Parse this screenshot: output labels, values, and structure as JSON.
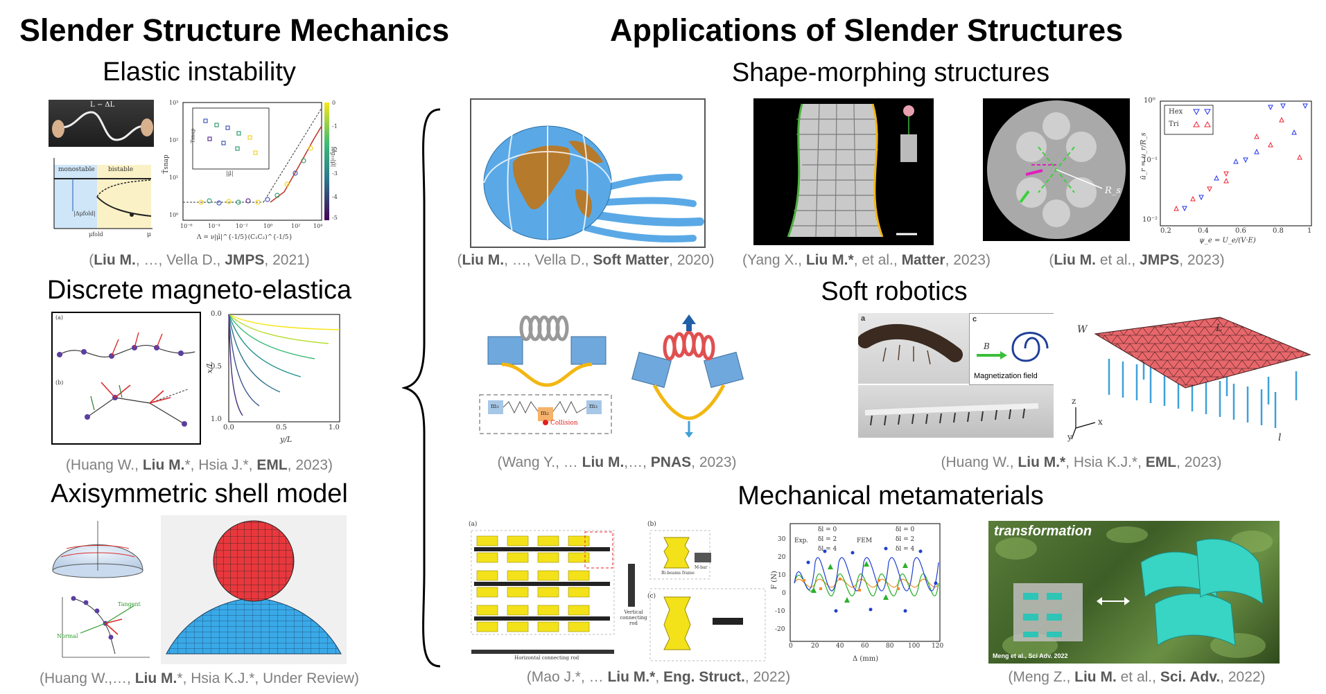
{
  "left_heading": "Slender Structure Mechanics",
  "right_heading": "Applications of Slender Structures",
  "left_sections": [
    {
      "title": "Elastic instability",
      "citation": {
        "pre": "(",
        "b1": "Liu M.",
        "mid1": ", …, Vella D., ",
        "b2": "JMPS",
        "post": ", 2021)"
      }
    },
    {
      "title": "Discrete magneto-elastica",
      "citation": {
        "pre": "(Huang W., ",
        "b1": "Liu M.",
        "mid1": "*, Hsia J.*, ",
        "b2": "EML",
        "post": ", 2023)"
      }
    },
    {
      "title": "Axisymmetric shell model",
      "citation": {
        "pre": "(Huang W.,…, ",
        "b1": "Liu M.",
        "mid1": "*, Hsia K.J.*, Under Review)",
        "b2": "",
        "post": ""
      }
    }
  ],
  "right_sections": {
    "shape_morphing": {
      "title": "Shape-morphing structures",
      "citations": [
        {
          "pre": "(",
          "b1": "Liu M.",
          "mid1": ", …, Vella D., ",
          "b2": "Soft Matter",
          "post": ", 2020)"
        },
        {
          "pre": "(Yang X., ",
          "b1": "Liu M.*",
          "mid1": ", et al., ",
          "b2": "Matter",
          "post": ", 2023)"
        },
        {
          "pre": "(",
          "b1": "Liu M.",
          "mid1": " et al., ",
          "b2": "JMPS",
          "post": ", 2023)"
        }
      ]
    },
    "soft_robotics": {
      "title": "Soft robotics",
      "citations": [
        {
          "pre": "(Wang Y., … ",
          "b1": "Liu M.",
          "mid1": ",…, ",
          "b2": "PNAS",
          "post": ", 2023)"
        },
        {
          "pre": "(Huang W., ",
          "b1": "Liu M.*",
          "mid1": ", Hsia K.J.*, ",
          "b2": "EML",
          "post": ", 2023)"
        }
      ]
    },
    "metamaterials": {
      "title": "Mechanical metamaterials",
      "citations": [
        {
          "pre": "(Mao J.*, … ",
          "b1": "Liu M.*",
          "mid1": ", ",
          "b2": "Eng. Struct.",
          "post": ", 2022)"
        },
        {
          "pre": "(Meng Z., ",
          "b1": "Liu M.",
          "mid1": " et al., ",
          "b2": "Sci. Adv.",
          "post": ", 2022)"
        }
      ]
    }
  },
  "figure_text": {
    "elastic_top_label": "L − ΔL",
    "elastic_monostable": "monostable",
    "elastic_bistable": "bistable",
    "elastic_mufold": "μfold",
    "elastic_mu": "μ",
    "elastic_delta": "|Δμfold|",
    "elastic_xlabel": "Λ = ν|μ̂|^{-1/5}(C₁C₂)^{-1/5}",
    "elastic_ylabel": "T̃snap",
    "elastic_cbar": "log₁₀|μ̂|",
    "elastic_cbar_ticks": [
      "0",
      "-1",
      "-2",
      "-3",
      "-4",
      "-5"
    ],
    "elastic_xticks": [
      "10⁻⁶",
      "10⁻⁴",
      "10⁻²",
      "10⁰",
      "10²",
      "10⁴"
    ],
    "elastic_yticks": [
      "10³",
      "10²",
      "10¹",
      "10⁰"
    ],
    "elastic_inset_xlabel": "|μ̂|",
    "elastic_inset_ylabel": "Tsnap",
    "magneto_xlabel": "y/L",
    "magneto_ylabel": "x/L",
    "magneto_xticks": [
      "0.0",
      "0.5",
      "1.0"
    ],
    "magneto_yticks": [
      "0.0",
      "0.5",
      "1.0"
    ],
    "magneto_panel_a": "(a)",
    "magneto_panel_b": "(b)",
    "shell_tangent": "Tangent",
    "shell_normal": "Normal",
    "jmps_legend": [
      "Hex",
      "Tri"
    ],
    "jmps_ylabel": "ū_r = u_r/R_s",
    "jmps_xlabel": "ψ_e = U_e/(V·E)",
    "jmps_xticks": [
      "0.2",
      "0.4",
      "0.6",
      "0.8",
      "1"
    ],
    "jmps_yticks": [
      "10⁰",
      "10⁻¹",
      "10⁻²"
    ],
    "jmps_rs": "R_s",
    "soft_mag_label": "Magnetization field",
    "soft_b_label": "B",
    "soft_a": "a",
    "soft_c": "c",
    "soft_collision": "Collision",
    "soft_m": [
      "m₁",
      "m₂",
      "m₃"
    ],
    "grid_w": "W",
    "grid_l": "L",
    "grid_lsmall": "l",
    "grid_axes": [
      "z",
      "x",
      "y"
    ],
    "meta_a": "(a)",
    "meta_b": "(b)",
    "meta_c": "(c)",
    "meta_vertical": "Vertical connecting rod",
    "meta_horizontal": "Horizontal connecting rod",
    "meta_frame": "Bi-beams frame",
    "meta_mbar": "M-bar",
    "plot_legend_exp": "Exp.",
    "plot_legend_fem": "FEM",
    "plot_legend_items": [
      "δl = 0",
      "δl = 2",
      "δl = 4"
    ],
    "plot_xlabel": "Δ (mm)",
    "plot_ylabel": "F (N)",
    "plot_xticks": [
      "0",
      "20",
      "40",
      "60",
      "80",
      "100",
      "120"
    ],
    "plot_yticks": [
      "30",
      "20",
      "10",
      "0",
      "-10",
      "-20"
    ],
    "photo_title": "transformation",
    "photo_credit": "Meng et al., Sci Adv. 2022"
  },
  "colors": {
    "title": "#000000",
    "citation": "#7f7f7f",
    "accent_blue": "#5aa9e6",
    "globe_brown": "#b57a2c",
    "sphere_red": "#e8383d",
    "shell_blue": "#3aa9e8",
    "grid_red": "#e8676b"
  }
}
